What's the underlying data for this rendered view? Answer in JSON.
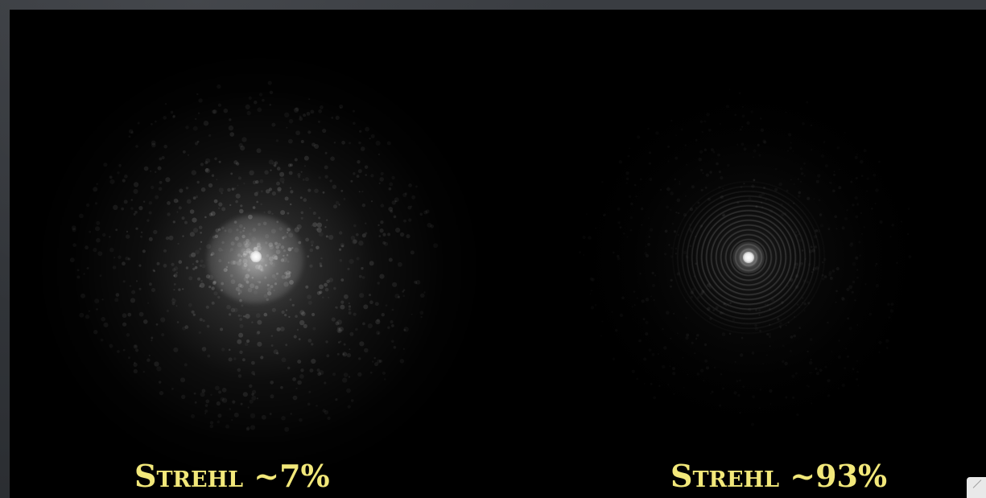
{
  "panels": [
    {
      "label": "Strehl ~7%",
      "strehl_percent": 7
    },
    {
      "label": "Strehl ~93%",
      "strehl_percent": 93
    }
  ],
  "colors": {
    "label": "#f2e87a",
    "background": "#000000",
    "frame": "#2f3236"
  },
  "icons": {
    "corner": "resize-handle-icon"
  }
}
